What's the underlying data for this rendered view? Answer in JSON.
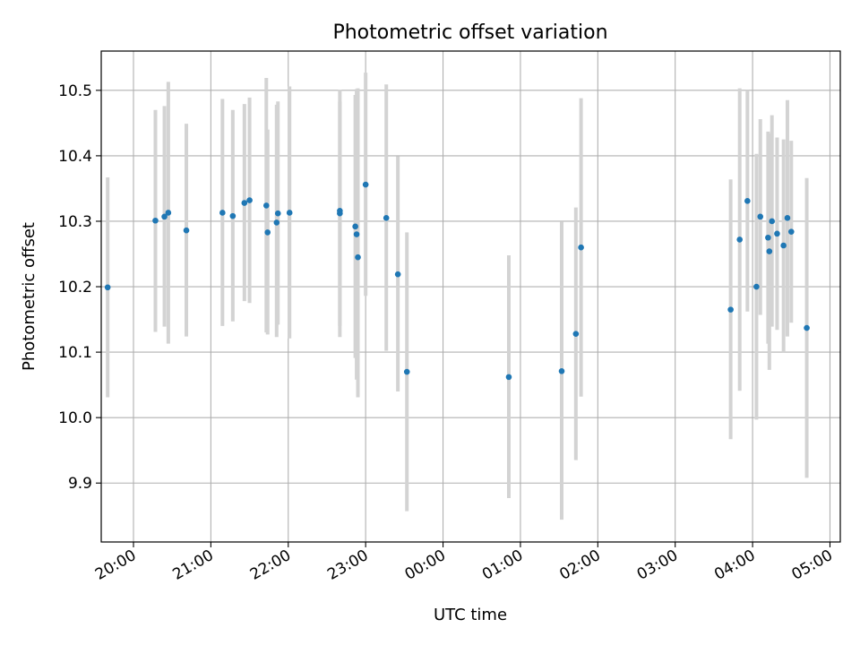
{
  "chart_data": {
    "type": "scatter",
    "title": "Photometric offset variation",
    "xlabel": "UTC time",
    "ylabel": "Photometric offset",
    "xlim": [
      "19:35",
      "05:08"
    ],
    "ylim": [
      9.81,
      10.56
    ],
    "grid": true,
    "x_ticks": [
      "20:00",
      "21:00",
      "22:00",
      "23:00",
      "00:00",
      "01:00",
      "02:00",
      "03:00",
      "04:00",
      "05:00"
    ],
    "y_ticks": [
      "9.9",
      "10.0",
      "10.1",
      "10.2",
      "10.3",
      "10.4",
      "10.5"
    ],
    "marker_color": "#1f77b4",
    "errorbar_color": "#d3d3d3",
    "points": [
      {
        "t": "19:40",
        "y": 10.199,
        "lo": 10.031,
        "hi": 10.367
      },
      {
        "t": "20:17",
        "y": 10.301,
        "lo": 10.131,
        "hi": 10.47
      },
      {
        "t": "20:24",
        "y": 10.307,
        "lo": 10.139,
        "hi": 10.476
      },
      {
        "t": "20:27",
        "y": 10.313,
        "lo": 10.113,
        "hi": 10.513
      },
      {
        "t": "20:41",
        "y": 10.286,
        "lo": 10.124,
        "hi": 10.449
      },
      {
        "t": "21:09",
        "y": 10.313,
        "lo": 10.14,
        "hi": 10.487
      },
      {
        "t": "21:17",
        "y": 10.308,
        "lo": 10.147,
        "hi": 10.47
      },
      {
        "t": "21:26",
        "y": 10.328,
        "lo": 10.178,
        "hi": 10.479
      },
      {
        "t": "21:30",
        "y": 10.332,
        "lo": 10.175,
        "hi": 10.489
      },
      {
        "t": "21:43",
        "y": 10.324,
        "lo": 10.13,
        "hi": 10.519
      },
      {
        "t": "21:44",
        "y": 10.283,
        "lo": 10.127,
        "hi": 10.44
      },
      {
        "t": "21:51",
        "y": 10.298,
        "lo": 10.123,
        "hi": 10.478
      },
      {
        "t": "21:52",
        "y": 10.312,
        "lo": 10.142,
        "hi": 10.483
      },
      {
        "t": "22:01",
        "y": 10.313,
        "lo": 10.121,
        "hi": 10.506
      },
      {
        "t": "22:40",
        "y": 10.316,
        "lo": 10.123,
        "hi": 10.501
      },
      {
        "t": "22:40",
        "y": 10.312,
        "lo": 10.14,
        "hi": 10.483
      },
      {
        "t": "22:52",
        "y": 10.292,
        "lo": 10.091,
        "hi": 10.493
      },
      {
        "t": "22:53",
        "y": 10.28,
        "lo": 10.058,
        "hi": 10.502
      },
      {
        "t": "22:54",
        "y": 10.245,
        "lo": 10.031,
        "hi": 10.503
      },
      {
        "t": "23:00",
        "y": 10.356,
        "lo": 10.186,
        "hi": 10.527
      },
      {
        "t": "23:16",
        "y": 10.305,
        "lo": 10.102,
        "hi": 10.509
      },
      {
        "t": "23:25",
        "y": 10.219,
        "lo": 10.04,
        "hi": 10.399
      },
      {
        "t": "23:32",
        "y": 10.07,
        "lo": 9.857,
        "hi": 10.283
      },
      {
        "t": "00:51",
        "y": 10.062,
        "lo": 9.877,
        "hi": 10.248
      },
      {
        "t": "01:32",
        "y": 10.071,
        "lo": 9.844,
        "hi": 10.299
      },
      {
        "t": "01:43",
        "y": 10.128,
        "lo": 9.935,
        "hi": 10.321
      },
      {
        "t": "01:47",
        "y": 10.26,
        "lo": 10.032,
        "hi": 10.488
      },
      {
        "t": "03:43",
        "y": 10.165,
        "lo": 9.967,
        "hi": 10.364
      },
      {
        "t": "03:50",
        "y": 10.272,
        "lo": 10.041,
        "hi": 10.503
      },
      {
        "t": "03:56",
        "y": 10.331,
        "lo": 10.162,
        "hi": 10.5
      },
      {
        "t": "04:03",
        "y": 10.2,
        "lo": 9.997,
        "hi": 10.403
      },
      {
        "t": "04:06",
        "y": 10.307,
        "lo": 10.157,
        "hi": 10.456
      },
      {
        "t": "04:12",
        "y": 10.275,
        "lo": 10.113,
        "hi": 10.437
      },
      {
        "t": "04:13",
        "y": 10.254,
        "lo": 10.073,
        "hi": 10.434
      },
      {
        "t": "04:15",
        "y": 10.3,
        "lo": 10.139,
        "hi": 10.462
      },
      {
        "t": "04:19",
        "y": 10.281,
        "lo": 10.134,
        "hi": 10.428
      },
      {
        "t": "04:24",
        "y": 10.263,
        "lo": 10.1,
        "hi": 10.425
      },
      {
        "t": "04:27",
        "y": 10.305,
        "lo": 10.124,
        "hi": 10.485
      },
      {
        "t": "04:30",
        "y": 10.284,
        "lo": 10.145,
        "hi": 10.423
      },
      {
        "t": "04:42",
        "y": 10.137,
        "lo": 9.908,
        "hi": 10.366
      }
    ]
  }
}
